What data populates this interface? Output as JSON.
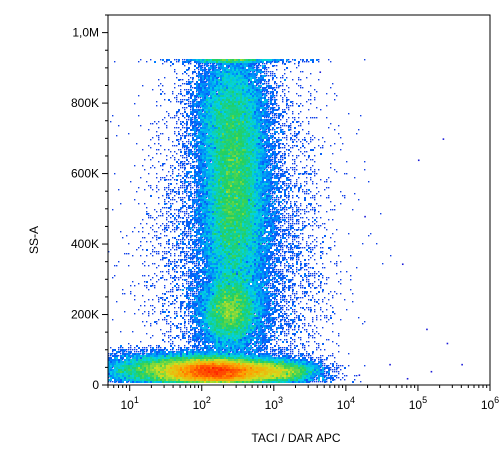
{
  "chart_data": {
    "type": "scatter",
    "subtype": "flow-cytometry-density-dot-plot",
    "xlabel": "TACI / DAR APC",
    "ylabel": "SS-A",
    "x_scale": "log",
    "xlim": [
      5,
      1000000
    ],
    "ylim": [
      0,
      1050000
    ],
    "x_ticks": [
      {
        "value": 10,
        "base": "10",
        "exp": "1"
      },
      {
        "value": 100,
        "base": "10",
        "exp": "2"
      },
      {
        "value": 1000,
        "base": "10",
        "exp": "3"
      },
      {
        "value": 10000,
        "base": "10",
        "exp": "4"
      },
      {
        "value": 100000,
        "base": "10",
        "exp": "5"
      },
      {
        "value": 1000000,
        "base": "10",
        "exp": "6"
      }
    ],
    "y_ticks": [
      {
        "value": 0,
        "label": "0"
      },
      {
        "value": 200000,
        "label": "200K"
      },
      {
        "value": 400000,
        "label": "400K"
      },
      {
        "value": 600000,
        "label": "600K"
      },
      {
        "value": 800000,
        "label": "800K"
      },
      {
        "value": 1000000,
        "label": "1,0M"
      }
    ],
    "grid": false,
    "legend": "none",
    "colormap": [
      "#1a1ad9",
      "#0077ff",
      "#00d2e6",
      "#22d060",
      "#d0e020",
      "#ff9d00",
      "#ff1d00"
    ],
    "populations": [
      {
        "x_log10": 2.2,
        "y": 40000,
        "sx_log10": 0.35,
        "sy": 18000,
        "weight": 0.3
      },
      {
        "x_log10": 1.5,
        "y": 45000,
        "sx_log10": 0.45,
        "sy": 22000,
        "weight": 0.1
      },
      {
        "x_log10": 2.45,
        "y": 540000,
        "sx_log10": 0.22,
        "sy": 150000,
        "weight": 0.24
      },
      {
        "x_log10": 2.4,
        "y": 210000,
        "sx_log10": 0.2,
        "sy": 50000,
        "weight": 0.09
      },
      {
        "x_log10": 2.4,
        "y": 780000,
        "sx_log10": 0.26,
        "sy": 90000,
        "weight": 0.08
      },
      {
        "x_log10": 3.0,
        "y": 40000,
        "sx_log10": 0.3,
        "sy": 16000,
        "weight": 0.07
      },
      {
        "x_log10": 2.5,
        "y": 350000,
        "sx_log10": 0.55,
        "sy": 280000,
        "weight": 0.12
      }
    ],
    "outliers": [
      {
        "x": 4300,
        "y": 890000
      },
      {
        "x": 18000,
        "y": 480000
      },
      {
        "x": 40000,
        "y": 60000
      },
      {
        "x": 100000,
        "y": 640000
      },
      {
        "x": 150000,
        "y": 40000
      },
      {
        "x": 250000,
        "y": 120000
      },
      {
        "x": 220000,
        "y": 700000
      },
      {
        "x": 60000,
        "y": 345000
      },
      {
        "x": 400000,
        "y": 60000
      },
      {
        "x": 15000,
        "y": 30000
      },
      {
        "x": 70000,
        "y": 20000
      },
      {
        "x": 130000,
        "y": 160000
      }
    ]
  }
}
